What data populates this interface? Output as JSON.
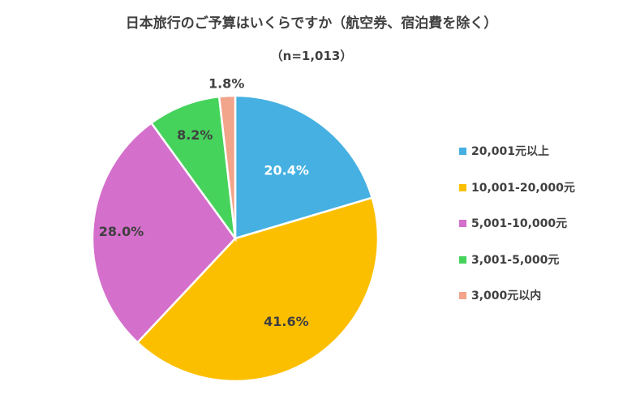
{
  "chart_data": {
    "type": "pie",
    "title": "日本旅行のご予算はいくらですか（航空券、宿泊費を除く）",
    "subtitle": "（n=1,013）",
    "legend_position": "right",
    "categories": [
      "20,001元以上",
      "10,001-20,000元",
      "5,001-10,000元",
      "3,001-5,000元",
      "3,000元以内"
    ],
    "values": [
      20.4,
      41.6,
      28.0,
      8.2,
      1.8
    ],
    "value_labels": [
      "20.4%",
      "41.6%",
      "28.0%",
      "8.2%",
      "1.8%"
    ],
    "colors": [
      "#45b0e1",
      "#fcbf00",
      "#d46fcb",
      "#46d35c",
      "#f2a58a"
    ],
    "label_colors": [
      "#ffffff",
      "#404040",
      "#404040",
      "#404040",
      "#404040"
    ]
  }
}
